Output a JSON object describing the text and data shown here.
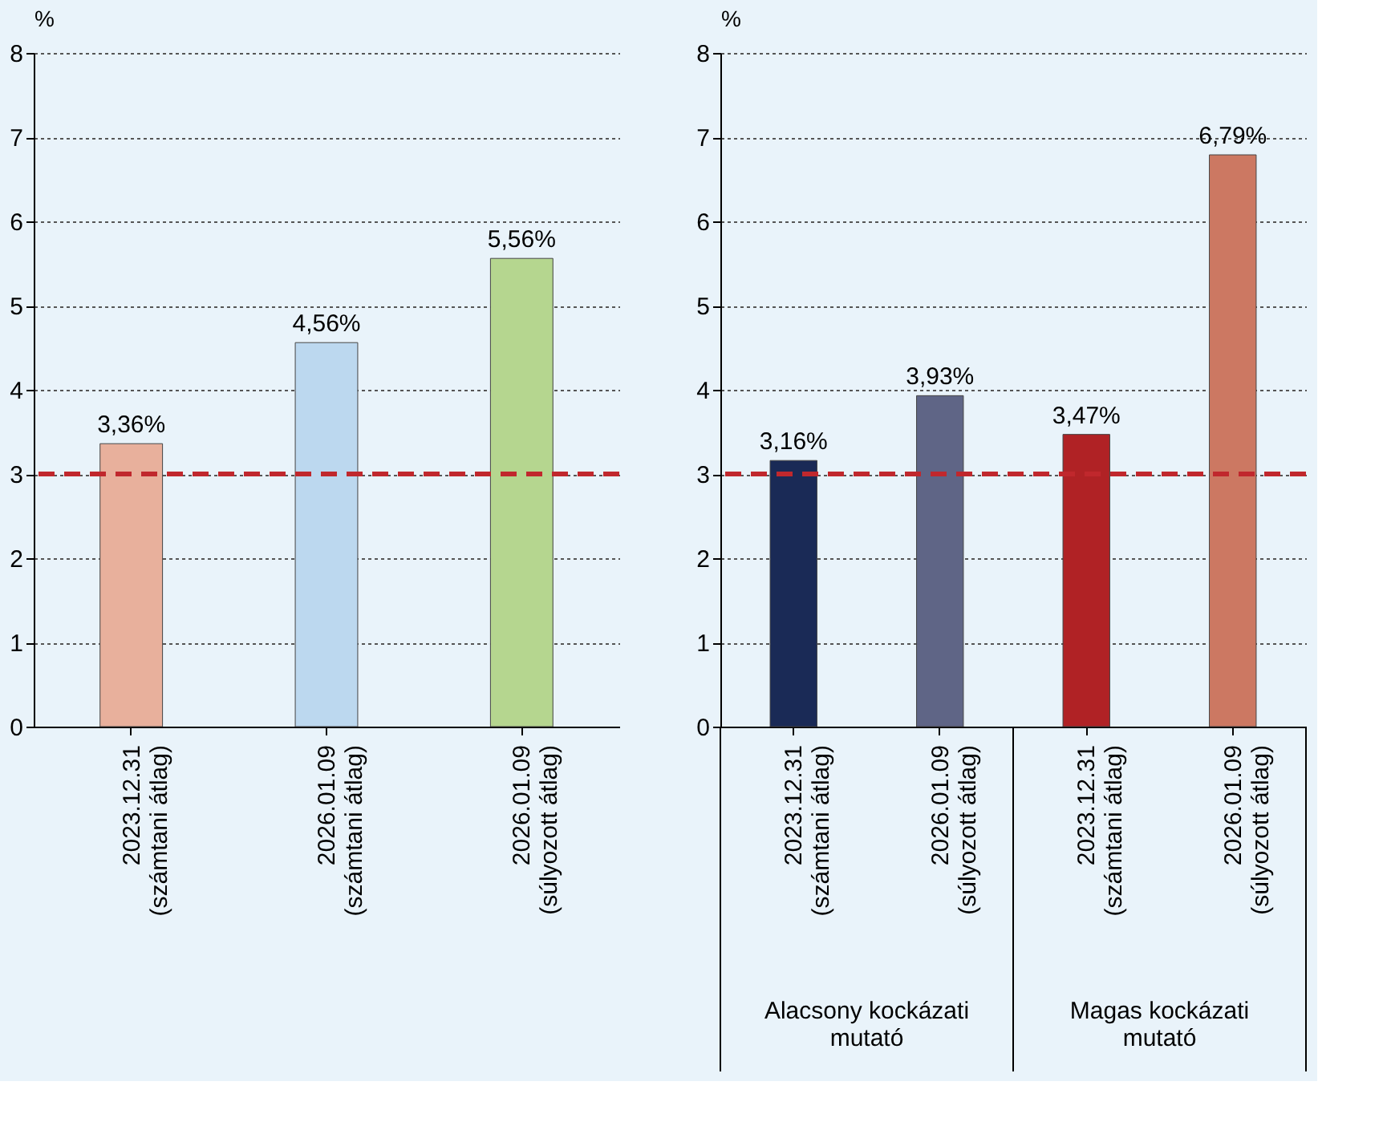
{
  "chart_data": [
    {
      "type": "bar",
      "ylabel": "%",
      "categories": [
        "2023.12.31\n(számtani átlag)",
        "2026.01.09\n(számtani átlag)",
        "2026.01.09\n(súlyozott átlag)"
      ],
      "values": [
        3.36,
        4.56,
        5.56
      ],
      "colors": [
        "#e8b09c",
        "#bcd8ef",
        "#b5d68f"
      ],
      "value_labels": [
        "3,36%",
        "4,56%",
        "5,56%"
      ],
      "ylim": [
        0,
        8
      ],
      "yticks": [
        0,
        1,
        2,
        3,
        4,
        5,
        6,
        7,
        8
      ],
      "grid": "y",
      "ref_lines": [
        {
          "axis": "y",
          "value": 3,
          "color": "#c0282d",
          "line_style": "dashed"
        }
      ]
    },
    {
      "type": "bar",
      "ylabel": "%",
      "categories": [
        "2023.12.31\n(számtani átlag)",
        "2026.01.09\n(súlyozott átlag)",
        "2023.12.31\n(számtani átlag)",
        "2026.01.09\n(súlyozott átlag)"
      ],
      "values": [
        3.16,
        3.93,
        3.47,
        6.79
      ],
      "colors": [
        "#1a2a56",
        "#5f6586",
        "#b02225",
        "#cc7862"
      ],
      "value_labels": [
        "3,16%",
        "3,93%",
        "3,47%",
        "6,79%"
      ],
      "ylim": [
        0,
        8
      ],
      "yticks": [
        0,
        1,
        2,
        3,
        4,
        5,
        6,
        7,
        8
      ],
      "grid": "y",
      "ref_lines": [
        {
          "axis": "y",
          "value": 3,
          "color": "#c0282d",
          "line_style": "dashed"
        }
      ],
      "annotations": [
        "Alacsony kockázati\nmutató",
        "Magas kockázati\nmutató"
      ]
    }
  ]
}
